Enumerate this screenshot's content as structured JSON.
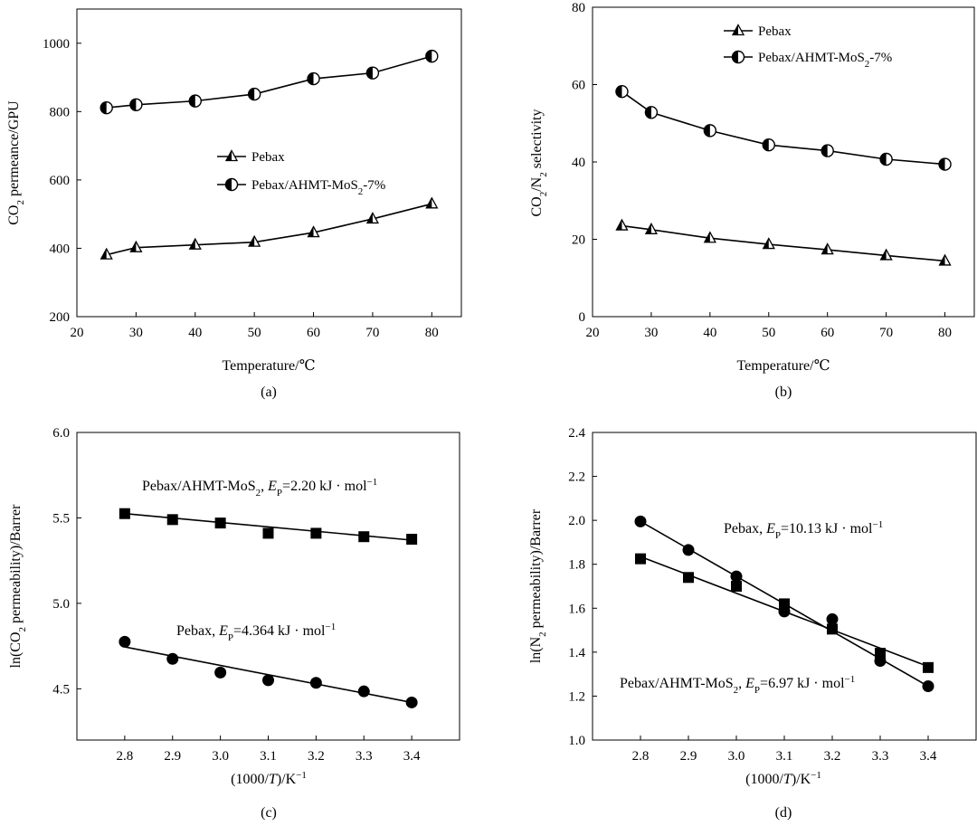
{
  "chart_data": [
    {
      "id": "a",
      "type": "line",
      "panel_label": "(a)",
      "xlabel": "Temperature/℃",
      "ylabel": "CO₂ permeance/GPU",
      "xlim": [
        20,
        85
      ],
      "ylim": [
        200,
        1100
      ],
      "xticks": [
        20,
        30,
        40,
        50,
        60,
        70,
        80
      ],
      "yticks": [
        200,
        400,
        600,
        800,
        1000
      ],
      "legend_position": "center-right",
      "series": [
        {
          "name": "Pebax",
          "marker": "triangle-half",
          "x": [
            25,
            30,
            40,
            50,
            60,
            70,
            80
          ],
          "y": [
            381,
            402,
            410,
            418,
            446,
            486,
            530
          ]
        },
        {
          "name": "Pebax/AHMT-MoS₂-7%",
          "marker": "circle-half",
          "x": [
            25,
            30,
            40,
            50,
            60,
            70,
            80
          ],
          "y": [
            811,
            820,
            831,
            851,
            896,
            913,
            962
          ]
        }
      ]
    },
    {
      "id": "b",
      "type": "line",
      "panel_label": "(b)",
      "xlabel": "Temperature/℃",
      "ylabel": "CO₂/N₂ selectivity",
      "xlim": [
        20,
        85
      ],
      "ylim": [
        0,
        80
      ],
      "xticks": [
        20,
        30,
        40,
        50,
        60,
        70,
        80
      ],
      "yticks": [
        0,
        20,
        40,
        60,
        80
      ],
      "legend_position": "top-left",
      "series": [
        {
          "name": "Pebax",
          "marker": "triangle-half",
          "x": [
            25,
            30,
            40,
            50,
            60,
            70,
            80
          ],
          "y": [
            23.5,
            22.5,
            20.3,
            18.7,
            17.3,
            15.8,
            14.4
          ]
        },
        {
          "name": "Pebax/AHMT-MoS₂-7%",
          "marker": "circle-half",
          "x": [
            25,
            30,
            40,
            50,
            60,
            70,
            80
          ],
          "y": [
            58.2,
            52.8,
            48.1,
            44.4,
            42.9,
            40.7,
            39.4
          ]
        }
      ]
    },
    {
      "id": "c",
      "type": "scatter",
      "panel_label": "(c)",
      "xlabel": "(1000/T)/K⁻¹",
      "ylabel": "ln(CO₂ permeability)/Barrer",
      "xlim": [
        2.7,
        3.5
      ],
      "ylim": [
        4.2,
        6.0
      ],
      "xticks": [
        2.8,
        2.9,
        3.0,
        3.1,
        3.2,
        3.3,
        3.4
      ],
      "yticks": [
        4.5,
        5.0,
        5.5,
        6.0
      ],
      "series": [
        {
          "name": "Pebax/AHMT-MoS₂",
          "marker": "square",
          "annotation": "Pebax/AHMT-MoS₂, Eₚ=2.20 kJ · mol⁻¹",
          "x": [
            2.8,
            2.9,
            3.0,
            3.1,
            3.2,
            3.3,
            3.4
          ],
          "y": [
            5.525,
            5.49,
            5.47,
            5.41,
            5.41,
            5.39,
            5.375
          ],
          "fit": [
            [
              2.8,
              5.525
            ],
            [
              3.4,
              5.37
            ]
          ]
        },
        {
          "name": "Pebax",
          "marker": "circle",
          "annotation": "Pebax, Eₚ=4.364 kJ · mol⁻¹",
          "x": [
            2.8,
            2.9,
            3.0,
            3.1,
            3.2,
            3.3,
            3.4
          ],
          "y": [
            4.775,
            4.675,
            4.595,
            4.55,
            4.535,
            4.485,
            4.42
          ],
          "fit": [
            [
              2.8,
              4.745
            ],
            [
              3.4,
              4.42
            ]
          ]
        }
      ]
    },
    {
      "id": "d",
      "type": "scatter",
      "panel_label": "(d)",
      "xlabel": "(1000/T)/K⁻¹",
      "ylabel": "ln(N₂ permeability)/Barrer",
      "xlim": [
        2.7,
        3.5
      ],
      "ylim": [
        1.0,
        2.4
      ],
      "xticks": [
        2.8,
        2.9,
        3.0,
        3.1,
        3.2,
        3.3,
        3.4
      ],
      "yticks": [
        1.0,
        1.2,
        1.4,
        1.6,
        1.8,
        2.0,
        2.2,
        2.4
      ],
      "series": [
        {
          "name": "Pebax",
          "marker": "circle",
          "annotation": "Pebax, Eₚ=10.13 kJ · mol⁻¹",
          "x": [
            2.8,
            2.9,
            3.0,
            3.1,
            3.2,
            3.3,
            3.4
          ],
          "y": [
            1.995,
            1.865,
            1.745,
            1.585,
            1.55,
            1.36,
            1.245
          ],
          "fit": [
            [
              2.8,
              1.995
            ],
            [
              3.4,
              1.245
            ]
          ]
        },
        {
          "name": "Pebax/AHMT-MoS₂",
          "marker": "square",
          "annotation": "Pebax/AHMT-MoS₂, Eₚ=6.97 kJ · mol⁻¹",
          "x": [
            2.8,
            2.9,
            3.0,
            3.1,
            3.2,
            3.3,
            3.4
          ],
          "y": [
            1.825,
            1.74,
            1.7,
            1.62,
            1.505,
            1.395,
            1.33
          ],
          "fit": [
            [
              2.8,
              1.835
            ],
            [
              3.4,
              1.335
            ]
          ]
        }
      ]
    }
  ]
}
